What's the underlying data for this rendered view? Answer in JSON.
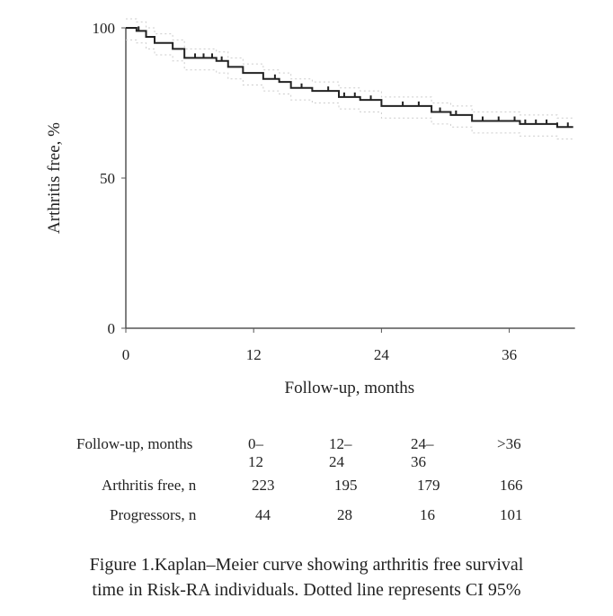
{
  "chart_data": {
    "type": "line",
    "title": "",
    "xlabel": "Follow-up, months",
    "ylabel": "Arthritis free, %",
    "xlim": [
      0,
      42
    ],
    "ylim": [
      0,
      100
    ],
    "xticks": [
      0,
      12,
      24,
      36
    ],
    "yticks": [
      0,
      50,
      100
    ],
    "series": [
      {
        "name": "Kaplan–Meier survival",
        "style": "step",
        "x": [
          0,
          1,
          1.9,
          2.7,
          4.4,
          5.5,
          8.5,
          9.6,
          11,
          12.9,
          14.4,
          15.5,
          17.5,
          20,
          22,
          24,
          28.7,
          30.5,
          32.5,
          37,
          40.5,
          42
        ],
        "y": [
          100,
          99,
          97,
          95,
          93,
          90,
          89,
          87,
          85,
          83,
          82,
          80,
          79,
          77,
          76,
          74,
          72,
          71,
          69,
          68,
          67,
          67
        ]
      }
    ],
    "censor_x": [
      1.2,
      6.5,
      7.3,
      8.1,
      9,
      14,
      16.5,
      19,
      20.5,
      21.5,
      23,
      26,
      27.5,
      29.5,
      31,
      33.5,
      35,
      36.5,
      37.5,
      38.5,
      39.5,
      40.5,
      41.5
    ],
    "ci_note": "Dotted line represents CI 95%"
  },
  "table": {
    "header": [
      "Follow-up, months",
      "0–12",
      "12–24",
      "24–36",
      ">36"
    ],
    "rows": [
      {
        "label": "Arthritis free, n",
        "values": [
          "223",
          "195",
          "179",
          "166"
        ]
      },
      {
        "label": "Progressors, n",
        "values": [
          "44",
          "28",
          "16",
          "101"
        ]
      }
    ]
  },
  "caption": {
    "line1": "Figure 1.Kaplan–Meier curve showing arthritis free survival",
    "line2": "time in Risk-RA individuals. Dotted line represents CI 95%"
  }
}
